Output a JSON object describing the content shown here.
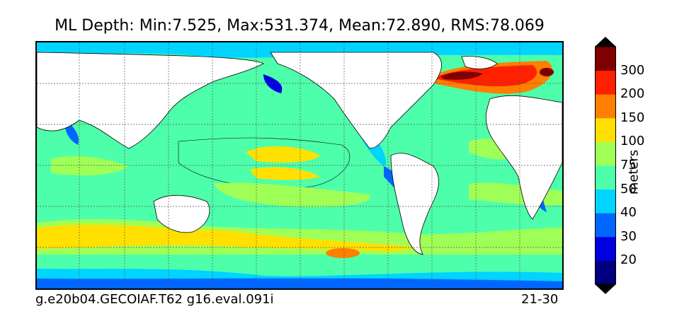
{
  "title": "ML Depth: Min:7.525, Max:531.374, Mean:72.890, RMS:78.069",
  "footer": {
    "left": "g.e20b04.GECOIAF.T62 g16.eval.091i",
    "right": "21-30"
  },
  "colorbar": {
    "label": "meters",
    "ticks": [
      "20",
      "30",
      "40",
      "50",
      "75",
      "100",
      "150",
      "200",
      "300"
    ],
    "colors": [
      "#00007f",
      "#0000e0",
      "#0066ff",
      "#00d4ff",
      "#4dffaa",
      "#a0ff57",
      "#ffe000",
      "#ff7f00",
      "#ff2000",
      "#7f0000"
    ],
    "extend": "both"
  },
  "colors": {
    "land": "#ffffff",
    "frame": "#000000",
    "grid": "#555555"
  }
}
